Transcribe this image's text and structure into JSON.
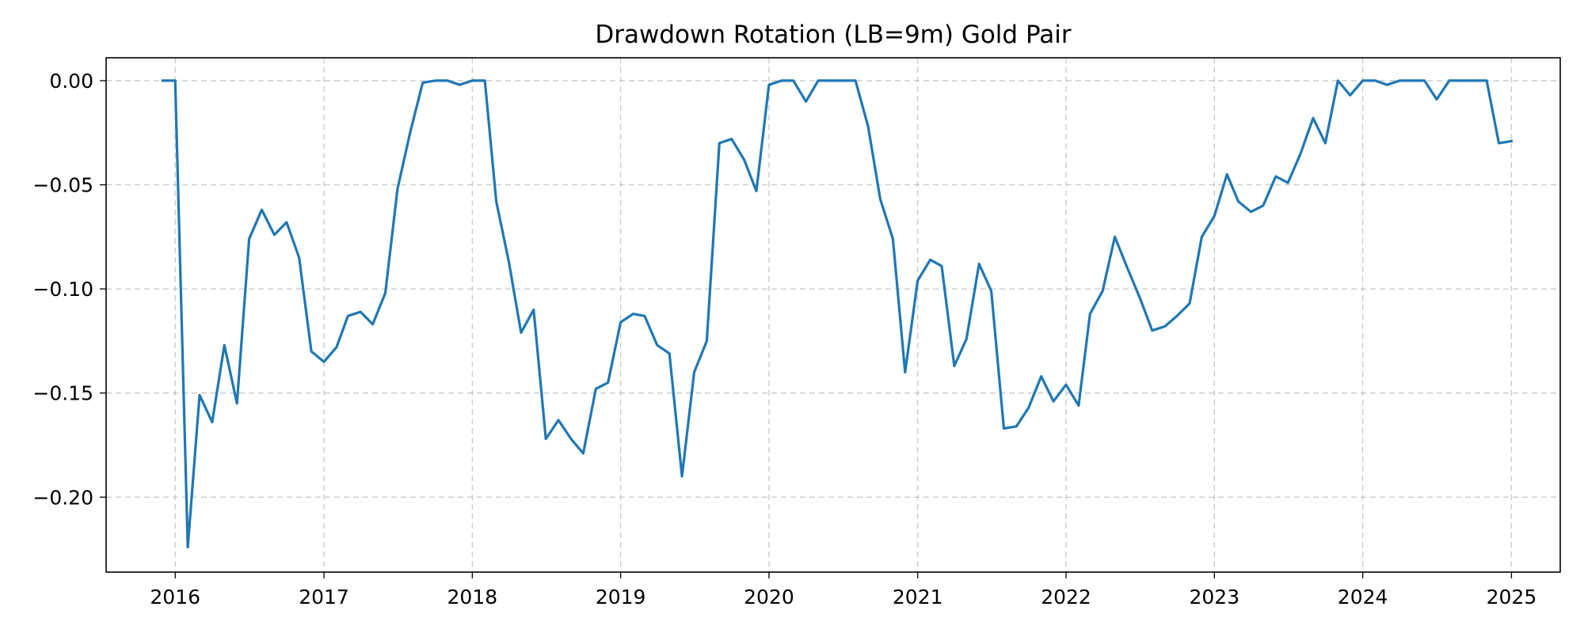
{
  "chart_data": {
    "type": "line",
    "title": "Drawdown Rotation (LB=9m) Gold Pair",
    "xlabel": "",
    "ylabel": "",
    "x_ticks": [
      "2016",
      "2017",
      "2018",
      "2019",
      "2020",
      "2021",
      "2022",
      "2023",
      "2024",
      "2025"
    ],
    "y_ticks": [
      "0.00",
      "−0.05",
      "−0.10",
      "−0.15",
      "−0.20"
    ],
    "y_tick_values": [
      0.0,
      -0.05,
      -0.1,
      -0.15,
      -0.2
    ],
    "xlim": [
      "2015-07-15",
      "2025-05-01"
    ],
    "ylim": [
      -0.236,
      0.011
    ],
    "grid": true,
    "series": [
      {
        "color": "#1f77b4",
        "x": [
          "2015-12-01",
          "2016-01-01",
          "2016-02-01",
          "2016-03-01",
          "2016-04-01",
          "2016-05-01",
          "2016-06-01",
          "2016-07-01",
          "2016-08-01",
          "2016-09-01",
          "2016-10-01",
          "2016-11-01",
          "2016-12-01",
          "2017-01-01",
          "2017-02-01",
          "2017-03-01",
          "2017-04-01",
          "2017-05-01",
          "2017-06-01",
          "2017-07-01",
          "2017-08-01",
          "2017-09-01",
          "2017-10-01",
          "2017-11-01",
          "2017-12-01",
          "2018-01-01",
          "2018-02-01",
          "2018-03-01",
          "2018-04-01",
          "2018-05-01",
          "2018-06-01",
          "2018-07-01",
          "2018-08-01",
          "2018-09-01",
          "2018-10-01",
          "2018-11-01",
          "2018-12-01",
          "2019-01-01",
          "2019-02-01",
          "2019-03-01",
          "2019-04-01",
          "2019-05-01",
          "2019-06-01",
          "2019-07-01",
          "2019-08-01",
          "2019-09-01",
          "2019-10-01",
          "2019-11-01",
          "2019-12-01",
          "2020-01-01",
          "2020-02-01",
          "2020-03-01",
          "2020-04-01",
          "2020-05-01",
          "2020-06-01",
          "2020-07-01",
          "2020-08-01",
          "2020-09-01",
          "2020-10-01",
          "2020-11-01",
          "2020-12-01",
          "2021-01-01",
          "2021-02-01",
          "2021-03-01",
          "2021-04-01",
          "2021-05-01",
          "2021-06-01",
          "2021-07-01",
          "2021-08-01",
          "2021-09-01",
          "2021-10-01",
          "2021-11-01",
          "2021-12-01",
          "2022-01-01",
          "2022-02-01",
          "2022-03-01",
          "2022-04-01",
          "2022-05-01",
          "2022-06-01",
          "2022-07-01",
          "2022-08-01",
          "2022-09-01",
          "2022-10-01",
          "2022-11-01",
          "2022-12-01",
          "2023-01-01",
          "2023-02-01",
          "2023-03-01",
          "2023-04-01",
          "2023-05-01",
          "2023-06-01",
          "2023-07-01",
          "2023-08-01",
          "2023-09-01",
          "2023-10-01",
          "2023-11-01",
          "2023-12-01",
          "2024-01-01",
          "2024-02-01",
          "2024-03-01",
          "2024-04-01",
          "2024-05-01",
          "2024-06-01",
          "2024-07-01",
          "2024-08-01",
          "2024-09-01",
          "2024-10-01",
          "2024-11-01",
          "2024-12-01",
          "2025-01-01"
        ],
        "y": [
          0.0,
          0.0,
          -0.224,
          -0.151,
          -0.164,
          -0.127,
          -0.155,
          -0.076,
          -0.062,
          -0.074,
          -0.068,
          -0.085,
          -0.13,
          -0.135,
          -0.128,
          -0.113,
          -0.111,
          -0.117,
          -0.102,
          -0.052,
          -0.025,
          -0.001,
          0.0,
          0.0,
          -0.002,
          0.0,
          0.0,
          -0.058,
          -0.087,
          -0.121,
          -0.11,
          -0.172,
          -0.163,
          -0.172,
          -0.179,
          -0.148,
          -0.145,
          -0.116,
          -0.112,
          -0.113,
          -0.127,
          -0.131,
          -0.19,
          -0.14,
          -0.125,
          -0.03,
          -0.028,
          -0.038,
          -0.053,
          -0.002,
          0.0,
          0.0,
          -0.01,
          0.0,
          0.0,
          0.0,
          0.0,
          -0.022,
          -0.057,
          -0.076,
          -0.14,
          -0.096,
          -0.086,
          -0.089,
          -0.137,
          -0.124,
          -0.088,
          -0.101,
          -0.167,
          -0.166,
          -0.157,
          -0.142,
          -0.154,
          -0.146,
          -0.156,
          -0.112,
          -0.101,
          -0.075,
          -0.09,
          -0.104,
          -0.12,
          -0.118,
          -0.113,
          -0.107,
          -0.075,
          -0.065,
          -0.045,
          -0.058,
          -0.063,
          -0.06,
          -0.046,
          -0.049,
          -0.035,
          -0.018,
          -0.03,
          0.0,
          -0.007,
          0.0,
          0.0,
          -0.002,
          0.0,
          0.0,
          0.0,
          -0.009,
          0.0,
          0.0,
          0.0,
          0.0,
          -0.03,
          -0.029
        ]
      }
    ]
  }
}
